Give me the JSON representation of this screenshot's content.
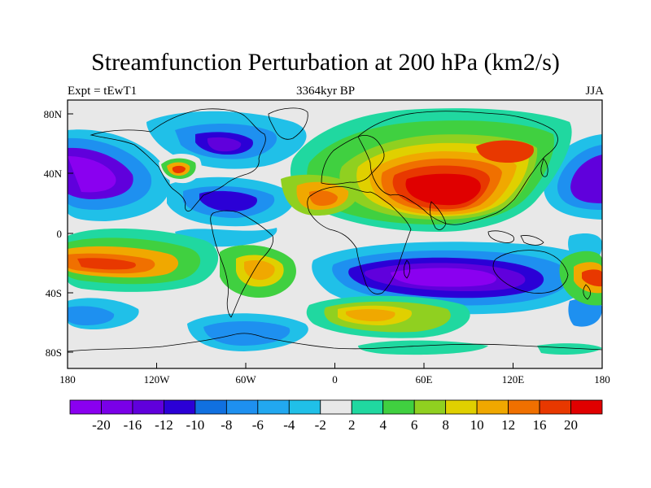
{
  "title": "Streamfunction Perturbation at 200 hPa (km2/s)",
  "subtitle_left": "Expt = tEwT1",
  "subtitle_center": "3364kyr BP",
  "subtitle_right": "JJA",
  "map": {
    "lat_ticks": [
      "80N",
      "40N",
      "0",
      "40S",
      "80S"
    ],
    "lon_ticks": [
      "180",
      "120W",
      "60W",
      "0",
      "60E",
      "120E",
      "180"
    ]
  },
  "colorbar": {
    "colors": [
      "#8a00f0",
      "#7a00e8",
      "#6000dc",
      "#2b00d6",
      "#1070e0",
      "#1e90f0",
      "#22a8f0",
      "#20c0e8",
      "#e8e8e8",
      "#20d8a0",
      "#40d040",
      "#90d020",
      "#e0d000",
      "#f0a800",
      "#f07000",
      "#e83800",
      "#e00000"
    ],
    "labels": [
      "-20",
      "-16",
      "-12",
      "-10",
      "-8",
      "-6",
      "-4",
      "-2",
      "2",
      "4",
      "6",
      "8",
      "10",
      "12",
      "16",
      "20"
    ]
  }
}
